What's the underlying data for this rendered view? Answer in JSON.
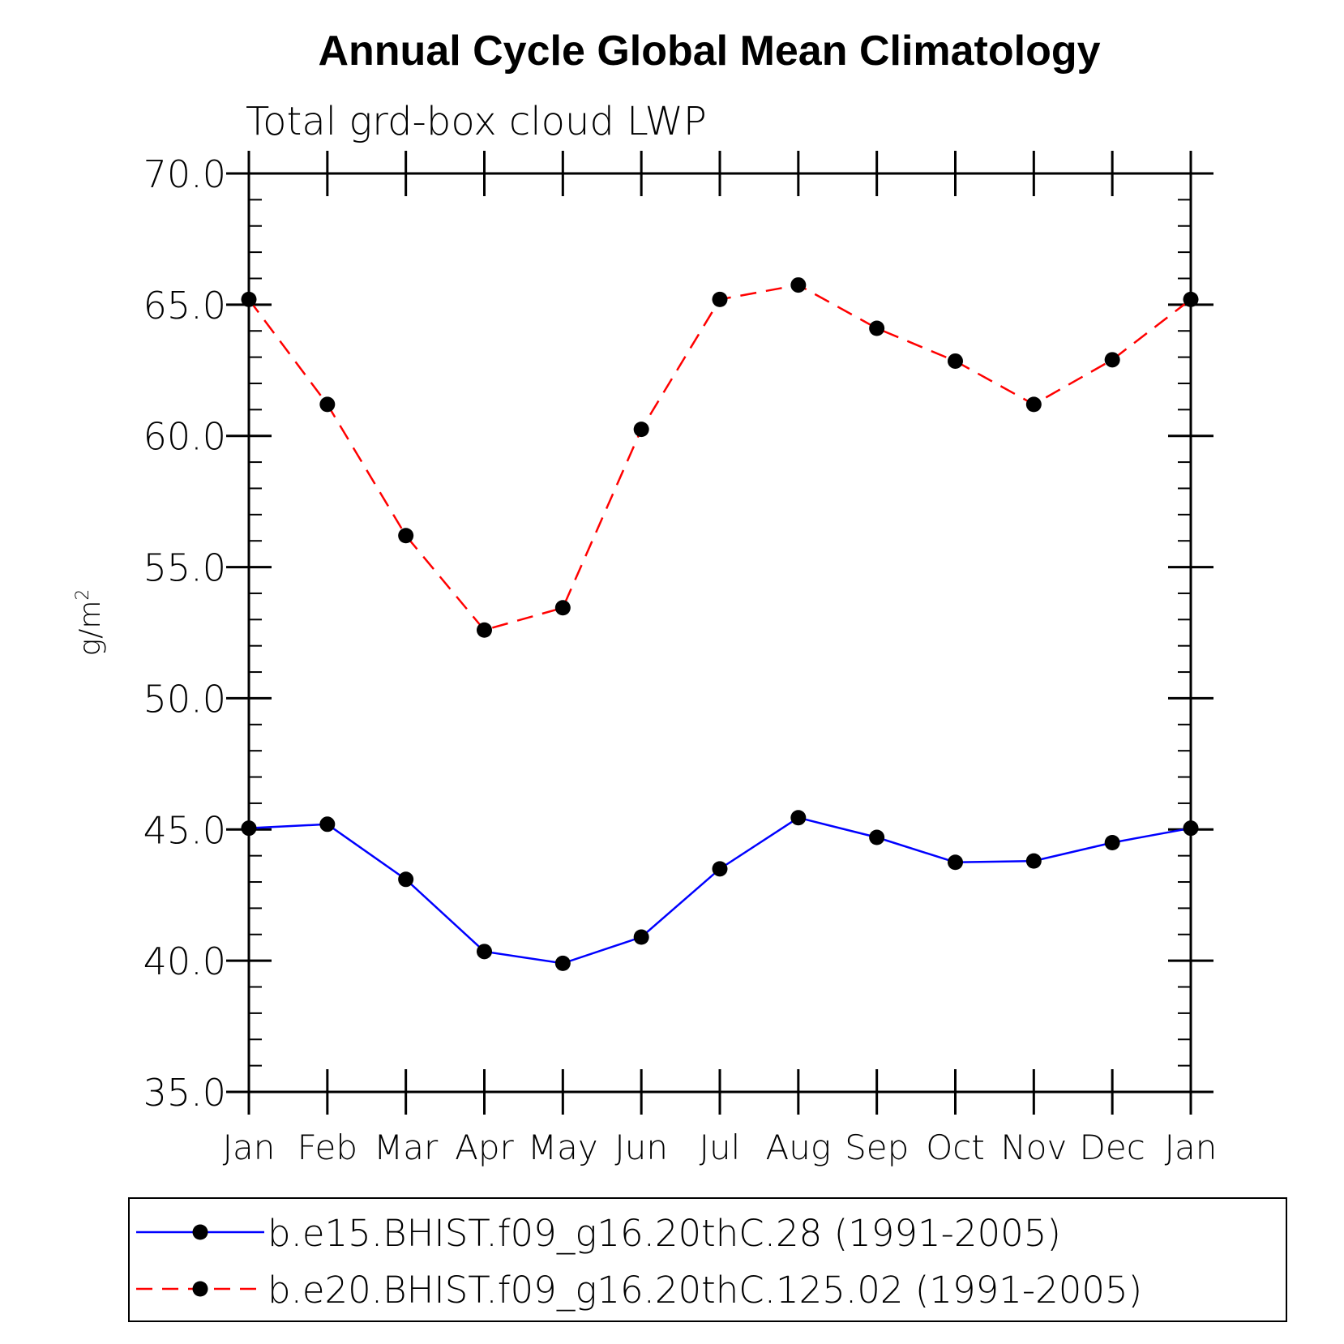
{
  "chart_data": {
    "type": "line",
    "title": "Annual Cycle Global Mean Climatology",
    "subtitle": "Total grd-box cloud LWP",
    "ylabel": "g/m",
    "ylabel_superscript": "2",
    "xlabel": "",
    "ylim": [
      35.0,
      70.0
    ],
    "ytick_values": [
      35.0,
      40.0,
      45.0,
      50.0,
      55.0,
      60.0,
      65.0,
      70.0
    ],
    "ytick_labels": [
      "35.0",
      "40.0",
      "45.0",
      "50.0",
      "55.0",
      "60.0",
      "65.0",
      "70.0"
    ],
    "categories": [
      "Jan",
      "Feb",
      "Mar",
      "Apr",
      "May",
      "Jun",
      "Jul",
      "Aug",
      "Sep",
      "Oct",
      "Nov",
      "Dec",
      "Jan"
    ],
    "grid": false,
    "legend_position": "bottom",
    "series": [
      {
        "name": "b.e15.BHIST.f09_g16.20thC.28 (1991-2005)",
        "color": "#0000ff",
        "dash": "solid",
        "marker": "filled-circle",
        "values": [
          45.05,
          45.2,
          43.1,
          40.35,
          39.9,
          40.9,
          43.5,
          45.45,
          44.7,
          43.75,
          43.8,
          44.5,
          45.05
        ]
      },
      {
        "name": "b.e20.BHIST.f09_g16.20thC.125.02 (1991-2005)",
        "color": "#ff0000",
        "dash": "dashed",
        "marker": "filled-circle",
        "values": [
          65.2,
          61.2,
          56.2,
          52.6,
          53.45,
          60.25,
          65.2,
          65.75,
          64.1,
          62.85,
          61.2,
          62.9,
          65.2
        ]
      }
    ]
  }
}
